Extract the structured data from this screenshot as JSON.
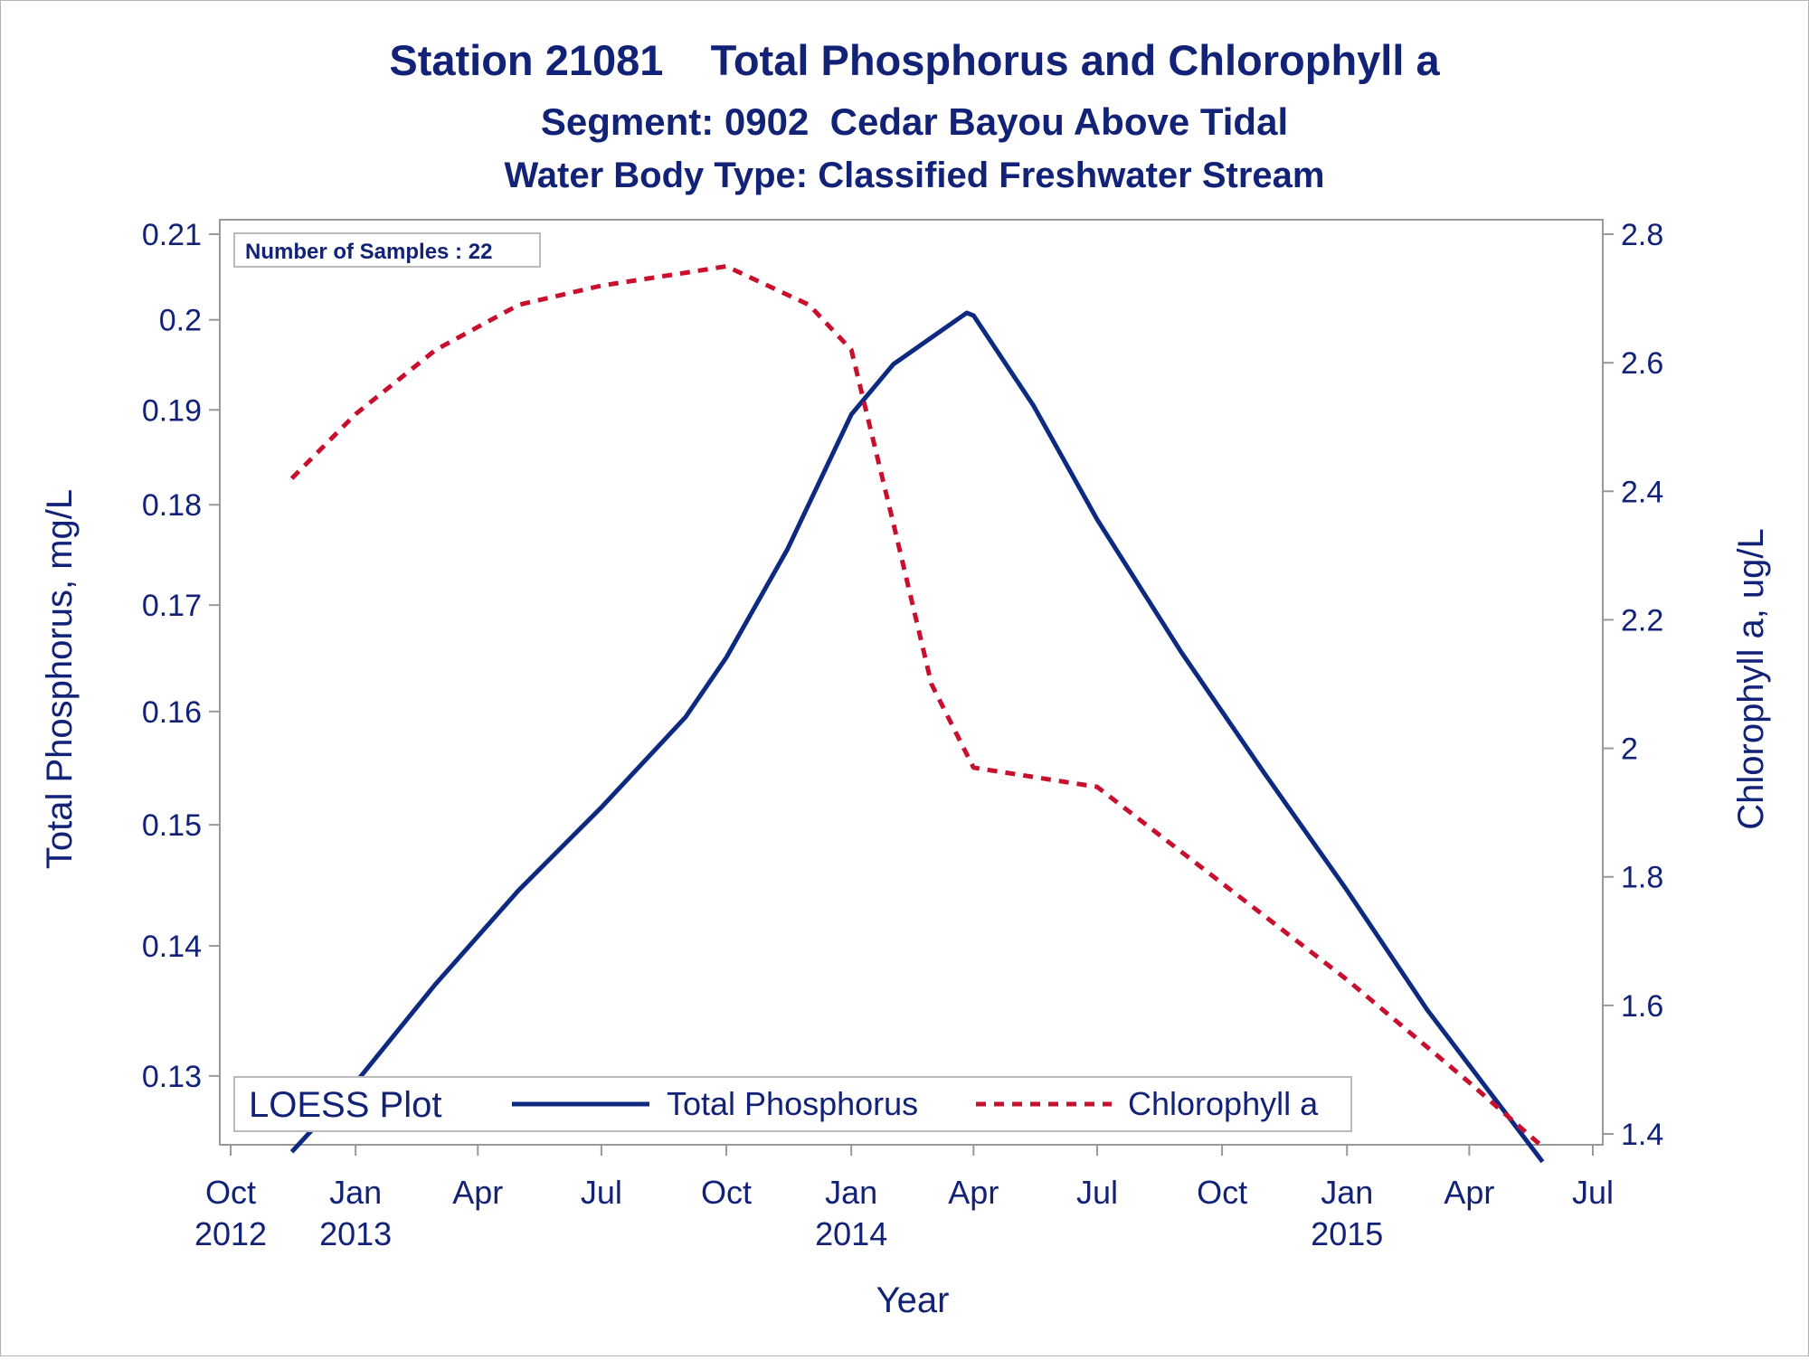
{
  "colors": {
    "text": "#112277",
    "series_tp": "#0d2a80",
    "series_chla": "#c8102e",
    "axis": "#999999"
  },
  "chart_data": {
    "type": "line",
    "title": "Station 21081    Total Phosphorus and Chlorophyll a",
    "subtitle": "Segment: 0902  Cedar Bayou Above Tidal",
    "subtitle2": "Water Body Type: Classified Freshwater Stream",
    "xlabel": "Year",
    "ylabel_left": "Total Phosphorus, mg/L",
    "ylabel_right": "Chlorophyll a, ug/L",
    "xlim": [
      "2012-10-01",
      "2015-07-01"
    ],
    "ylim_left": [
      0.125,
      0.21
    ],
    "ylim_right": [
      1.4,
      2.8
    ],
    "y_scale_left": "log",
    "grid": false,
    "x_ticks": [
      {
        "date": "2012-10-01",
        "line1": "Oct",
        "line2": "2012"
      },
      {
        "date": "2013-01-01",
        "line1": "Jan",
        "line2": "2013"
      },
      {
        "date": "2013-04-01",
        "line1": "Apr",
        "line2": ""
      },
      {
        "date": "2013-07-01",
        "line1": "Jul",
        "line2": ""
      },
      {
        "date": "2013-10-01",
        "line1": "Oct",
        "line2": ""
      },
      {
        "date": "2014-01-01",
        "line1": "Jan",
        "line2": "2014"
      },
      {
        "date": "2014-04-01",
        "line1": "Apr",
        "line2": ""
      },
      {
        "date": "2014-07-01",
        "line1": "Jul",
        "line2": ""
      },
      {
        "date": "2014-10-01",
        "line1": "Oct",
        "line2": ""
      },
      {
        "date": "2015-01-01",
        "line1": "Jan",
        "line2": "2015"
      },
      {
        "date": "2015-04-01",
        "line1": "Apr",
        "line2": ""
      },
      {
        "date": "2015-07-01",
        "line1": "Jul",
        "line2": ""
      }
    ],
    "y_ticks_left": [
      {
        "value": 0.13,
        "label": "0.13"
      },
      {
        "value": 0.14,
        "label": "0.14"
      },
      {
        "value": 0.15,
        "label": "0.15"
      },
      {
        "value": 0.16,
        "label": "0.16"
      },
      {
        "value": 0.17,
        "label": "0.17"
      },
      {
        "value": 0.18,
        "label": "0.18"
      },
      {
        "value": 0.19,
        "label": "0.19"
      },
      {
        "value": 0.2,
        "label": "0.2"
      },
      {
        "value": 0.21,
        "label": "0.21"
      }
    ],
    "y_ticks_right": [
      {
        "value": 1.4,
        "label": "1.4"
      },
      {
        "value": 1.6,
        "label": "1.6"
      },
      {
        "value": 1.8,
        "label": "1.8"
      },
      {
        "value": 2.0,
        "label": "2"
      },
      {
        "value": 2.2,
        "label": "2.2"
      },
      {
        "value": 2.4,
        "label": "2.4"
      },
      {
        "value": 2.6,
        "label": "2.6"
      },
      {
        "value": 2.8,
        "label": "2.8"
      }
    ],
    "inset": "Number of Samples : 22",
    "legend": {
      "title": "LOESS Plot",
      "position": "bottom-left inside",
      "items": [
        "Total Phosphorus",
        "Chlorophyll a"
      ]
    },
    "series": [
      {
        "name": "Total Phosphorus",
        "axis": "left",
        "style": "solid",
        "x": [
          "2012-11-15",
          "2013-01-01",
          "2013-03-01",
          "2013-05-01",
          "2013-07-01",
          "2013-09-01",
          "2013-10-01",
          "2013-11-15",
          "2014-01-01",
          "2014-02-01",
          "2014-03-27",
          "2014-04-01",
          "2014-05-15",
          "2014-07-01",
          "2014-09-01",
          "2014-11-01",
          "2015-01-01",
          "2015-03-01",
          "2015-05-25"
        ],
        "values": [
          0.1245,
          0.1295,
          0.137,
          0.1445,
          0.1515,
          0.1595,
          0.165,
          0.1755,
          0.1895,
          0.195,
          0.2008,
          0.2005,
          0.1905,
          0.1785,
          0.1655,
          0.1545,
          0.1445,
          0.135,
          0.1238
        ]
      },
      {
        "name": "Chlorophyll a",
        "axis": "right",
        "style": "dashed",
        "x": [
          "2012-11-15",
          "2013-01-01",
          "2013-03-01",
          "2013-05-01",
          "2013-07-01",
          "2013-09-01",
          "2013-10-01",
          "2013-12-01",
          "2014-01-01",
          "2014-02-01",
          "2014-03-01",
          "2014-04-01",
          "2014-07-01",
          "2014-10-01",
          "2015-01-01",
          "2015-04-01",
          "2015-05-25"
        ],
        "values": [
          2.42,
          2.52,
          2.62,
          2.69,
          2.72,
          2.74,
          2.75,
          2.69,
          2.62,
          2.35,
          2.1,
          1.97,
          1.94,
          1.79,
          1.64,
          1.48,
          1.38
        ]
      }
    ]
  }
}
